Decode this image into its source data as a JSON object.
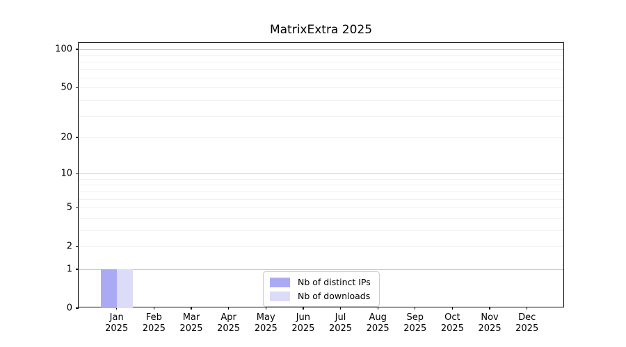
{
  "chart_data": {
    "type": "bar",
    "title": "MatrixExtra 2025",
    "months": [
      "Jan",
      "Feb",
      "Mar",
      "Apr",
      "May",
      "Jun",
      "Jul",
      "Aug",
      "Sep",
      "Oct",
      "Nov",
      "Dec"
    ],
    "year": "2025",
    "series": [
      {
        "name": "Nb of distinct IPs",
        "color": "#aaaaf4",
        "values": [
          1,
          0,
          0,
          0,
          0,
          0,
          0,
          0,
          0,
          0,
          0,
          0
        ]
      },
      {
        "name": "Nb of downloads",
        "color": "#dcdcf8",
        "values": [
          1,
          0,
          0,
          0,
          0,
          0,
          0,
          0,
          0,
          0,
          0,
          0
        ]
      }
    ],
    "yscale": "log1p",
    "ylim": [
      0,
      112
    ],
    "ytick_values": [
      0,
      1,
      2,
      5,
      10,
      20,
      50,
      100
    ],
    "ygrid_major": [
      1,
      10,
      100
    ],
    "ygrid_minor": [
      2,
      3,
      4,
      5,
      6,
      7,
      8,
      9,
      20,
      30,
      40,
      50,
      60,
      70,
      80,
      90
    ],
    "grid": true,
    "legend_position": "lower center",
    "xlabel": "",
    "ylabel": ""
  }
}
